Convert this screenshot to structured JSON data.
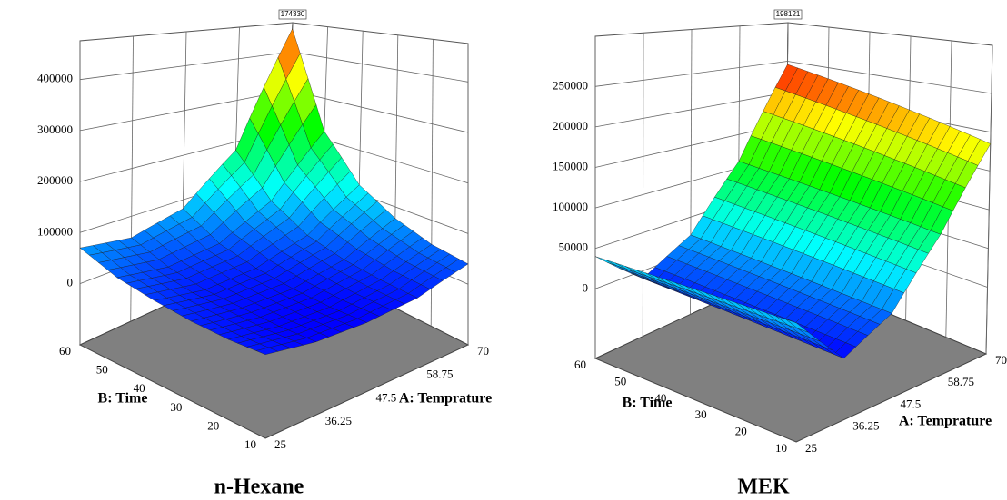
{
  "chart_data": [
    {
      "type": "surface",
      "title": "n-Hexane",
      "annotation": "174330",
      "x_label": "A: Temprature",
      "y_label": "B: Time",
      "xlim": [
        25,
        70
      ],
      "xticks": [
        25,
        36.25,
        47.5,
        58.75,
        70
      ],
      "ylim": [
        10,
        60
      ],
      "yticks": [
        10,
        20,
        30,
        40,
        50,
        60
      ],
      "zlim": [
        -120000,
        476000
      ],
      "zticks": [
        0,
        100000,
        200000,
        300000,
        400000
      ],
      "z": [
        [
          10000,
          0,
          0,
          10000,
          40000
        ],
        [
          10000,
          0,
          0,
          15000,
          50000
        ],
        [
          15000,
          5000,
          5000,
          25000,
          75000
        ],
        [
          25000,
          10000,
          15000,
          45000,
          120000
        ],
        [
          40000,
          25000,
          35000,
          90000,
          220000
        ],
        [
          70000,
          55000,
          80000,
          180000,
          460000
        ]
      ]
    },
    {
      "type": "surface",
      "title": "MEK",
      "annotation": "198121",
      "x_label": "A: Temprature",
      "y_label": "B: Time",
      "xlim": [
        25,
        70
      ],
      "xticks": [
        25,
        36.25,
        47.5,
        58.75,
        70
      ],
      "ylim": [
        10,
        60
      ],
      "yticks": [
        10,
        20,
        30,
        40,
        50,
        60
      ],
      "zlim": [
        -86000,
        312000
      ],
      "zticks": [
        0,
        50000,
        100000,
        150000,
        200000,
        250000
      ],
      "z": [
        [
          35000,
          -20000,
          10000,
          85000,
          185000
        ],
        [
          36000,
          -18000,
          13000,
          90000,
          197000
        ],
        [
          37000,
          -16000,
          16000,
          95000,
          209000
        ],
        [
          38000,
          -14000,
          19000,
          100000,
          221000
        ],
        [
          39000,
          -12000,
          22000,
          105000,
          233000
        ],
        [
          40000,
          -10000,
          25000,
          110000,
          245000
        ]
      ]
    }
  ]
}
